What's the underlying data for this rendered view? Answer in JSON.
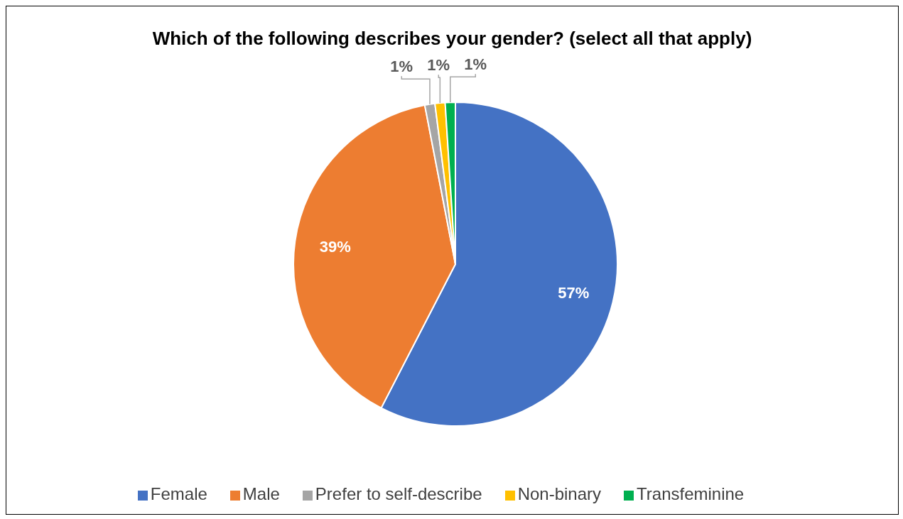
{
  "chart_data": {
    "type": "pie",
    "title": "Which of the following describes your gender? (select all that apply)",
    "categories": [
      "Female",
      "Male",
      "Prefer to self-describe",
      "Non-binary",
      "Transfeminine"
    ],
    "values": [
      57,
      39,
      1,
      1,
      1
    ],
    "colors": [
      "#4472c4",
      "#ed7d31",
      "#a5a5a5",
      "#ffc000",
      "#00b050"
    ],
    "value_labels": [
      "57%",
      "39%",
      "1%",
      "1%",
      "1%"
    ],
    "legend": "bottom"
  }
}
